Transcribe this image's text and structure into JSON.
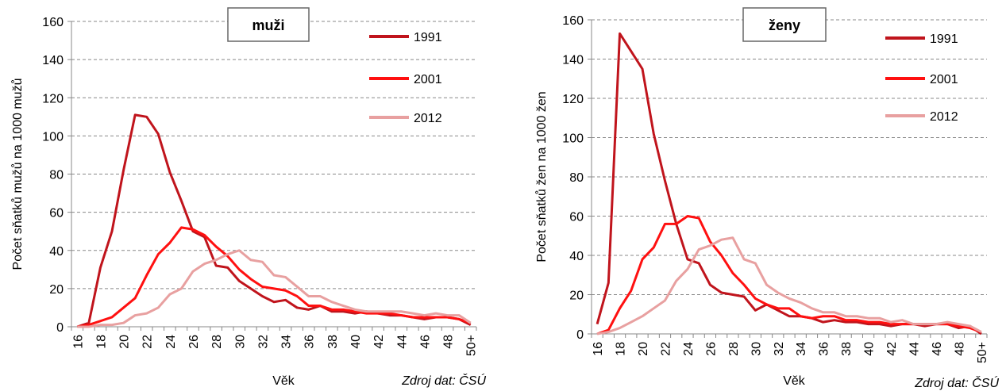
{
  "chart_data": [
    {
      "type": "line",
      "title": "muži",
      "y_label": "Počet sňatků mužů na 1000 mužů",
      "x_label": "Věk",
      "source": "Zdroj dat: ČSÚ",
      "categories": [
        "16",
        null,
        "18",
        null,
        "20",
        null,
        "22",
        null,
        "24",
        null,
        "26",
        null,
        "28",
        null,
        "30",
        null,
        "32",
        null,
        "34",
        null,
        "36",
        null,
        "38",
        null,
        "40",
        null,
        "42",
        null,
        "44",
        null,
        "46",
        null,
        "48",
        null,
        "50+"
      ],
      "ylim": [
        0,
        160
      ],
      "yticks": [
        0,
        20,
        40,
        60,
        80,
        100,
        120,
        140,
        160
      ],
      "grid": true,
      "series": [
        {
          "name": "1991",
          "color": "#c0141c",
          "values": [
            0,
            2,
            31,
            50,
            82,
            111,
            110,
            101,
            81,
            66,
            50,
            47,
            32,
            31,
            24,
            20,
            16,
            13,
            14,
            10,
            9,
            11,
            8,
            8,
            7,
            8,
            7,
            6,
            6,
            5,
            4,
            5,
            5,
            4,
            1
          ]
        },
        {
          "name": "2001",
          "color": "#ff1010",
          "values": [
            0,
            1,
            3,
            5,
            10,
            15,
            27,
            38,
            44,
            52,
            51,
            48,
            42,
            37,
            30,
            25,
            21,
            20,
            19,
            16,
            11,
            11,
            9,
            9,
            8,
            7,
            7,
            7,
            6,
            5,
            5,
            5,
            5,
            4,
            2
          ]
        },
        {
          "name": "2012",
          "color": "#e8a0a0",
          "values": [
            0,
            0,
            1,
            1,
            2,
            6,
            7,
            10,
            17,
            20,
            29,
            33,
            35,
            38,
            40,
            35,
            34,
            27,
            26,
            21,
            16,
            16,
            13,
            11,
            9,
            8,
            8,
            8,
            8,
            7,
            6,
            7,
            6,
            6,
            2
          ]
        }
      ]
    },
    {
      "type": "line",
      "title": "ženy",
      "y_label": "Počet sňatků žen na 1000 žen",
      "x_label": "Věk",
      "source": "Zdroj dat: ČSÚ",
      "categories": [
        "16",
        null,
        "18",
        null,
        "20",
        null,
        "22",
        null,
        "24",
        null,
        "26",
        null,
        "28",
        null,
        "30",
        null,
        "32",
        null,
        "34",
        null,
        "36",
        null,
        "38",
        null,
        "40",
        null,
        "42",
        null,
        "44",
        null,
        "46",
        null,
        "48",
        null,
        "50+"
      ],
      "ylim": [
        0,
        160
      ],
      "yticks": [
        0,
        20,
        40,
        60,
        80,
        100,
        120,
        140,
        160
      ],
      "grid": true,
      "series": [
        {
          "name": "1991",
          "color": "#c0141c",
          "values": [
            5,
            26,
            153,
            144,
            135,
            102,
            78,
            56,
            38,
            36,
            25,
            21,
            20,
            19,
            12,
            15,
            12,
            9,
            9,
            8,
            6,
            7,
            6,
            6,
            5,
            5,
            4,
            5,
            5,
            4,
            5,
            5,
            3,
            4,
            0
          ]
        },
        {
          "name": "2001",
          "color": "#ff1010",
          "values": [
            0,
            2,
            13,
            22,
            38,
            44,
            56,
            56,
            60,
            59,
            47,
            40,
            31,
            25,
            18,
            15,
            13,
            13,
            9,
            8,
            9,
            9,
            7,
            7,
            6,
            6,
            5,
            5,
            5,
            5,
            5,
            5,
            4,
            3,
            1
          ]
        },
        {
          "name": "2012",
          "color": "#e8a0a0",
          "values": [
            0,
            1,
            3,
            6,
            9,
            13,
            17,
            27,
            33,
            43,
            45,
            48,
            49,
            38,
            36,
            25,
            21,
            18,
            16,
            13,
            11,
            11,
            9,
            9,
            8,
            8,
            6,
            7,
            5,
            5,
            5,
            6,
            5,
            4,
            1
          ]
        }
      ]
    }
  ]
}
